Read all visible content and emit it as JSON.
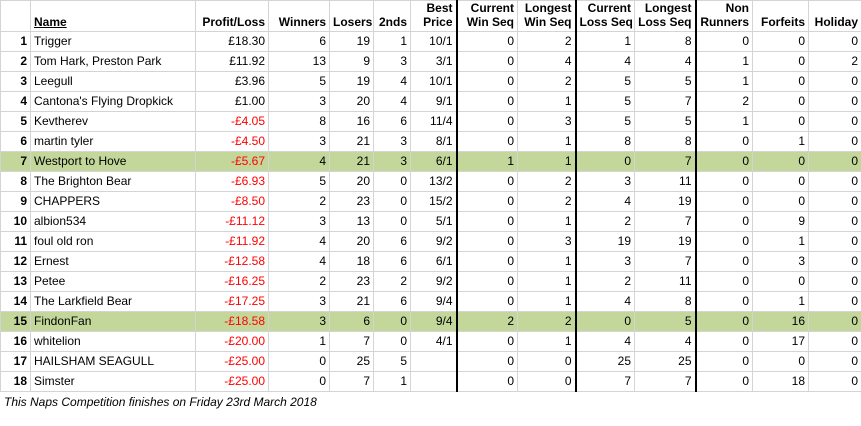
{
  "table": {
    "headers": [
      [
        "Name"
      ],
      [
        "Profit/Loss"
      ],
      [
        "Winners"
      ],
      [
        "Losers"
      ],
      [
        "2nds"
      ],
      [
        "Best",
        "Price"
      ],
      [
        "Current",
        "Win Seq"
      ],
      [
        "Longest",
        "Win Seq"
      ],
      [
        "Current",
        "Loss Seq"
      ],
      [
        "Longest",
        "Loss Seq"
      ],
      [
        "Non",
        "Runners"
      ],
      [
        "Forfeits"
      ],
      [
        "Holiday"
      ]
    ],
    "highlight_color": "#c4d79b",
    "negative_color": "#ff0000",
    "rows": [
      {
        "cells": [
          1,
          "Trigger",
          "£18.30",
          6,
          19,
          1,
          "10/1",
          0,
          2,
          1,
          8,
          0,
          0,
          0
        ]
      },
      {
        "cells": [
          2,
          "Tom Hark, Preston Park",
          "£11.92",
          13,
          9,
          3,
          "3/1",
          0,
          4,
          4,
          4,
          1,
          0,
          2
        ]
      },
      {
        "cells": [
          3,
          "Leegull",
          "£3.96",
          5,
          19,
          4,
          "10/1",
          0,
          2,
          5,
          5,
          1,
          0,
          0
        ]
      },
      {
        "cells": [
          4,
          "Cantona's Flying Dropkick",
          "£1.00",
          3,
          20,
          4,
          "9/1",
          0,
          1,
          5,
          7,
          2,
          0,
          0
        ]
      },
      {
        "cells": [
          5,
          "Kevtherev",
          "-£4.05",
          8,
          16,
          6,
          "11/4",
          0,
          3,
          5,
          5,
          1,
          0,
          0
        ]
      },
      {
        "cells": [
          6,
          "martin tyler",
          "-£4.50",
          3,
          21,
          3,
          "8/1",
          0,
          1,
          8,
          8,
          0,
          1,
          0
        ]
      },
      {
        "cells": [
          7,
          "Westport to Hove",
          "-£5.67",
          4,
          21,
          3,
          "6/1",
          1,
          1,
          0,
          7,
          0,
          0,
          0
        ],
        "highlighted": true
      },
      {
        "cells": [
          8,
          "The Brighton Bear",
          "-£6.93",
          5,
          20,
          0,
          "13/2",
          0,
          2,
          3,
          11,
          0,
          0,
          0
        ]
      },
      {
        "cells": [
          9,
          "CHAPPERS",
          "-£8.50",
          2,
          23,
          0,
          "15/2",
          0,
          2,
          4,
          19,
          0,
          0,
          0
        ]
      },
      {
        "cells": [
          10,
          "albion534",
          "-£11.12",
          3,
          13,
          0,
          "5/1",
          0,
          1,
          2,
          7,
          0,
          9,
          0
        ]
      },
      {
        "cells": [
          11,
          "foul old ron",
          "-£11.92",
          4,
          20,
          6,
          "9/2",
          0,
          3,
          19,
          19,
          0,
          1,
          0
        ]
      },
      {
        "cells": [
          12,
          "Ernest",
          "-£12.58",
          4,
          18,
          6,
          "6/1",
          0,
          1,
          3,
          7,
          0,
          3,
          0
        ]
      },
      {
        "cells": [
          13,
          "Petee",
          "-£16.25",
          2,
          23,
          2,
          "9/2",
          0,
          1,
          2,
          11,
          0,
          0,
          0
        ]
      },
      {
        "cells": [
          14,
          "The Larkfield Bear",
          "-£17.25",
          3,
          21,
          6,
          "9/4",
          0,
          1,
          4,
          8,
          0,
          1,
          0
        ]
      },
      {
        "cells": [
          15,
          "FindonFan",
          "-£18.58",
          3,
          6,
          0,
          "9/4",
          2,
          2,
          0,
          5,
          0,
          16,
          0
        ],
        "highlighted": true
      },
      {
        "cells": [
          16,
          "whitelion",
          "-£20.00",
          1,
          7,
          0,
          "4/1",
          0,
          1,
          4,
          4,
          0,
          17,
          0
        ]
      },
      {
        "cells": [
          17,
          "HAILSHAM SEAGULL",
          "-£25.00",
          0,
          25,
          5,
          null,
          0,
          0,
          25,
          25,
          0,
          0,
          0
        ]
      },
      {
        "cells": [
          18,
          "Simster",
          "-£25.00",
          0,
          7,
          1,
          null,
          0,
          0,
          7,
          7,
          0,
          18,
          0
        ]
      }
    ],
    "footnote": "This Naps Competition finishes on Friday 23rd March 2018"
  }
}
